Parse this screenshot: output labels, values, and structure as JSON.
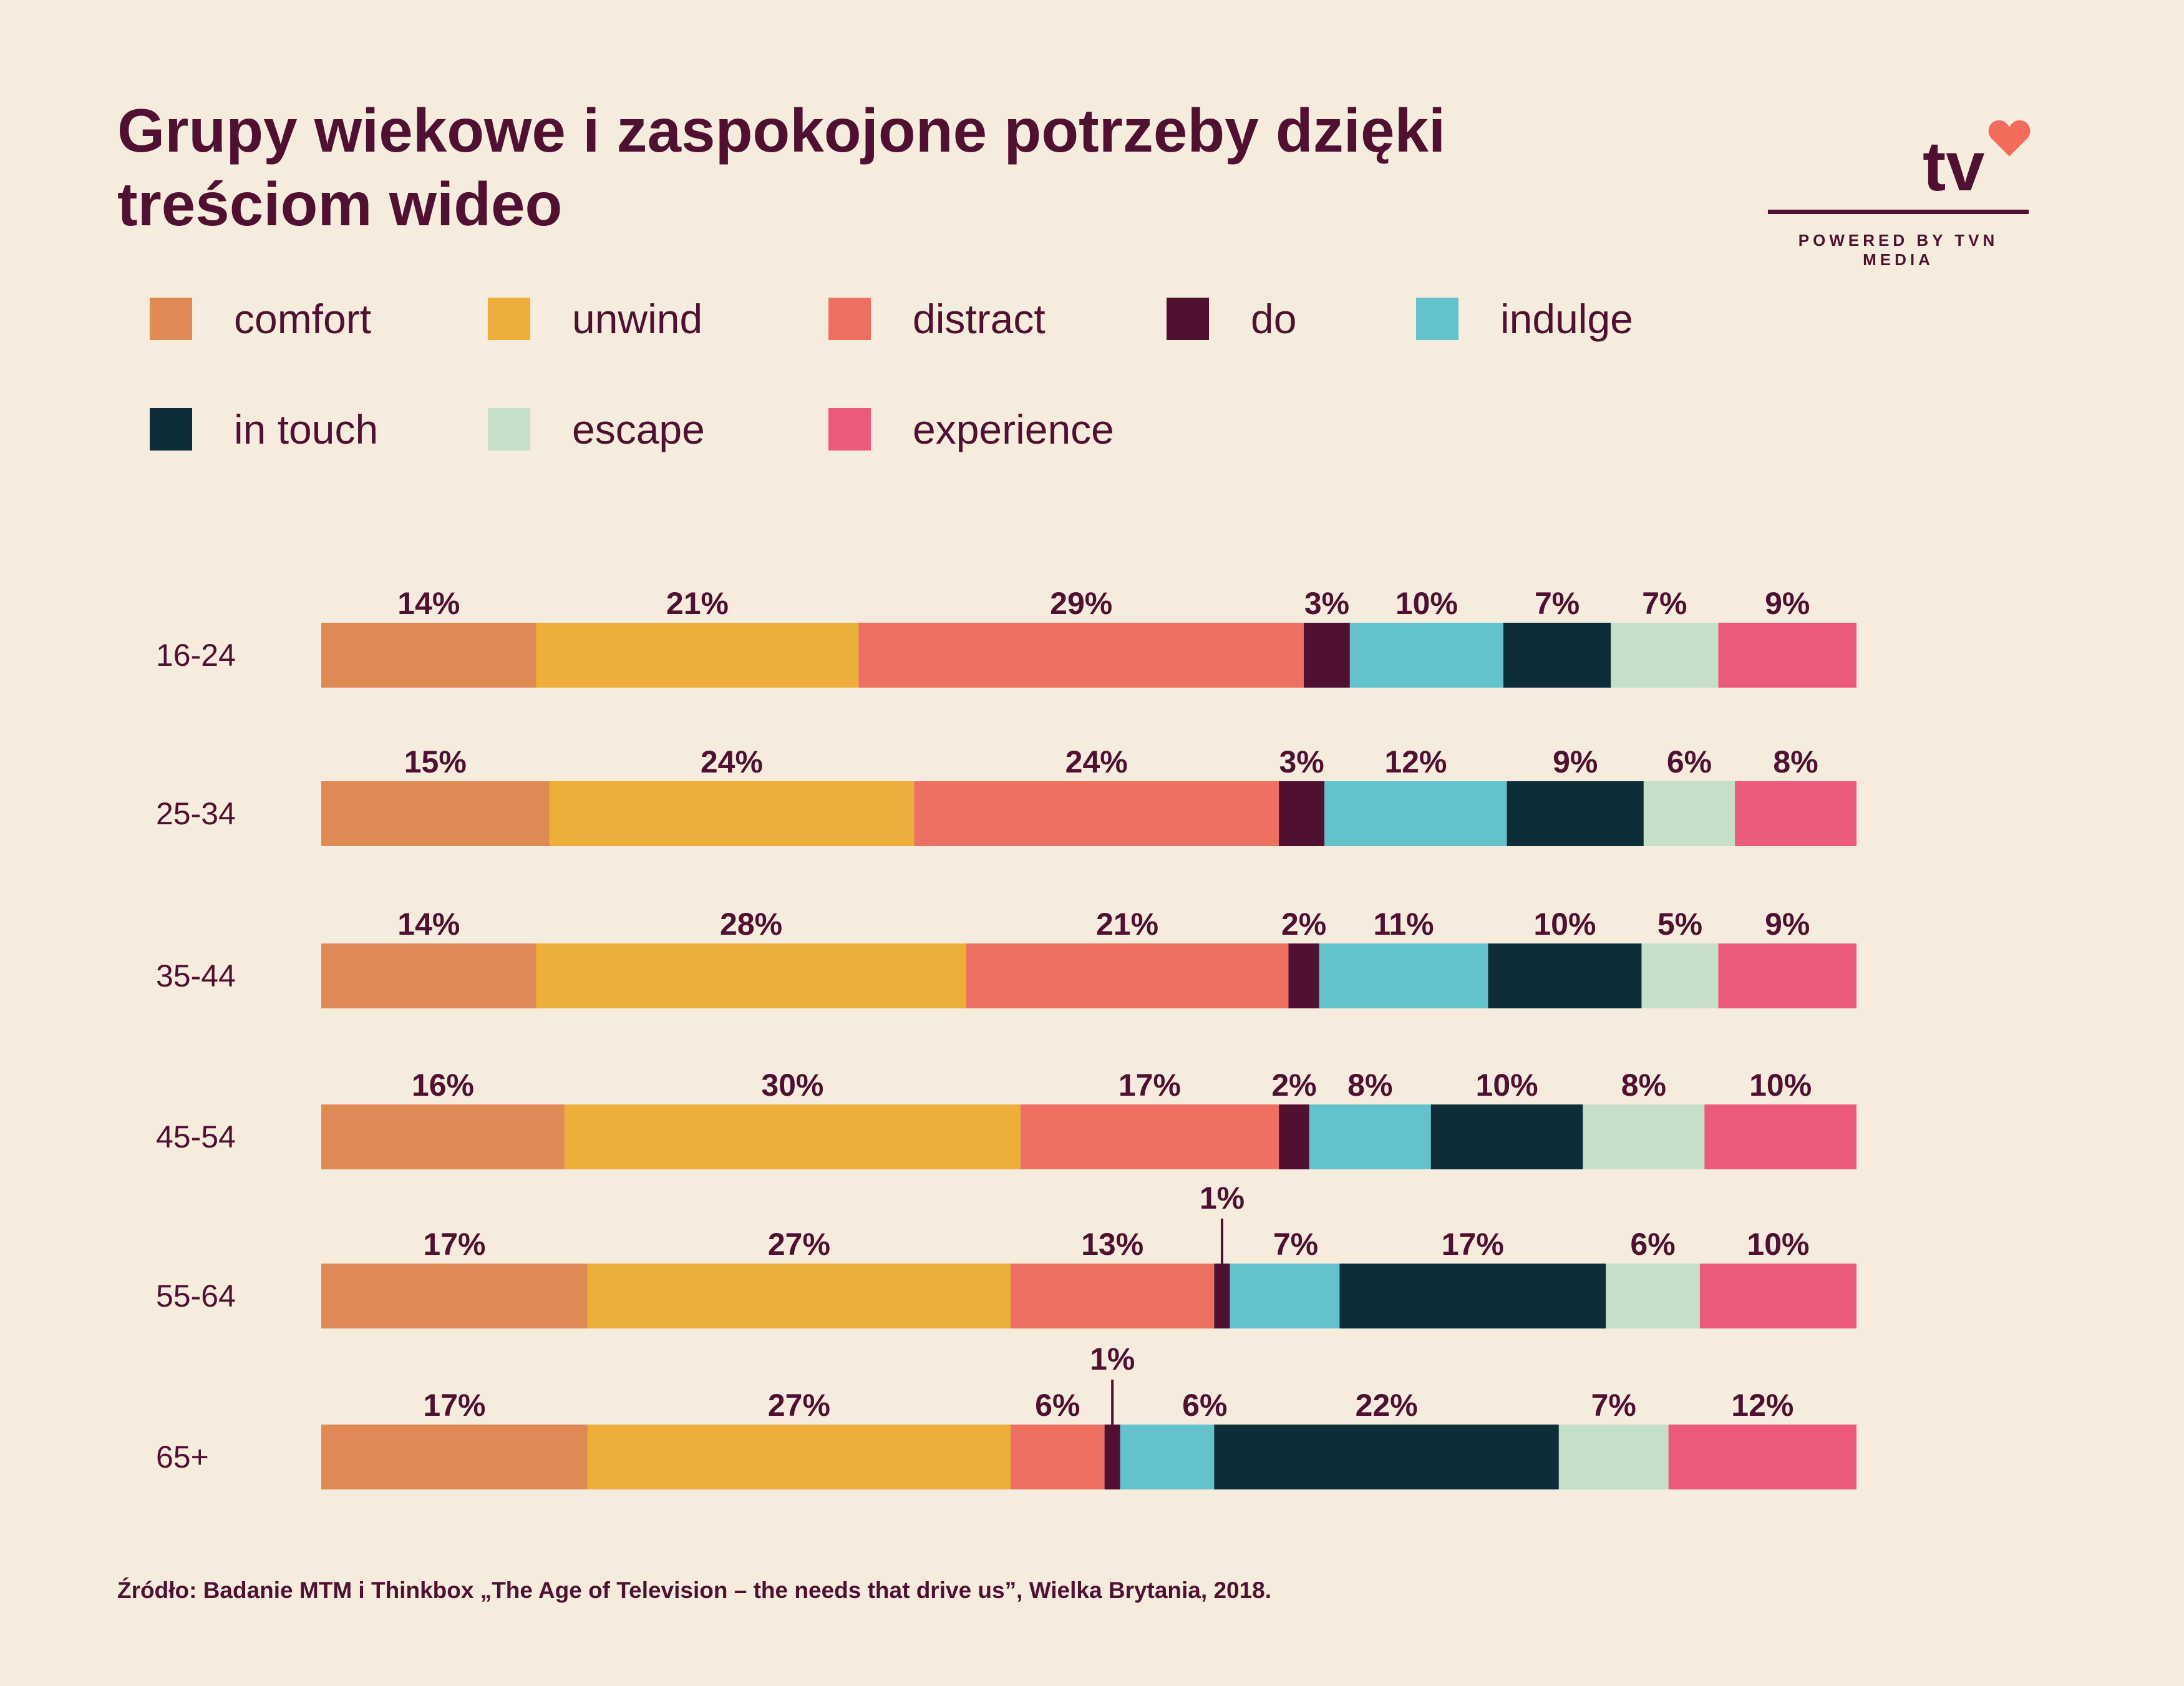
{
  "title": "Grupy wiekowe i zaspokojone potrzeby dzięki treściom wideo",
  "logo": {
    "mark": "tv",
    "heart_icon": "heart-icon",
    "tagline": "POWERED BY TVN MEDIA",
    "heart_color": "#f26b5b"
  },
  "source": "Źródło: Badanie MTM i Thinkbox „The Age of Television – the needs that drive us”, Wielka Brytania, 2018.",
  "chart_data": {
    "type": "bar",
    "orientation": "horizontal",
    "stacked": true,
    "title": "",
    "xlabel": "",
    "ylabel": "",
    "categories": [
      "16-24",
      "25-34",
      "35-44",
      "45-54",
      "55-64",
      "65+"
    ],
    "series": [
      {
        "name": "comfort",
        "color": "#df8955",
        "values": [
          14,
          15,
          14,
          16,
          17,
          17
        ],
        "labels": [
          "14%",
          "15%",
          "14%",
          "16%",
          "17%",
          "17%"
        ]
      },
      {
        "name": "unwind",
        "color": "#eeae3a",
        "values": [
          21,
          24,
          28,
          30,
          27,
          27
        ],
        "labels": [
          "21%",
          "24%",
          "28%",
          "30%",
          "27%",
          "27%"
        ]
      },
      {
        "name": "distract",
        "color": "#ee7062",
        "values": [
          29,
          24,
          21,
          17,
          13,
          6
        ],
        "labels": [
          "29%",
          "24%",
          "21%",
          "17%",
          "13%",
          "6%"
        ]
      },
      {
        "name": "do",
        "color": "#4f1032",
        "values": [
          3,
          3,
          2,
          2,
          1,
          1
        ],
        "labels": [
          "3%",
          "3%",
          "2%",
          "2%",
          "1%",
          "1%"
        ]
      },
      {
        "name": "indulge",
        "color": "#64c2cc",
        "values": [
          10,
          12,
          11,
          8,
          7,
          6
        ],
        "labels": [
          "10%",
          "12%",
          "11%",
          "8%",
          "7%",
          "6%"
        ]
      },
      {
        "name": "in touch",
        "color": "#0d2d38",
        "values": [
          7,
          9,
          10,
          10,
          17,
          22
        ],
        "labels": [
          "7%",
          "9%",
          "10%",
          "10%",
          "17%",
          "22%"
        ]
      },
      {
        "name": "escape",
        "color": "#c6dfc8",
        "values": [
          7,
          6,
          5,
          8,
          6,
          7
        ],
        "labels": [
          "7%",
          "6%",
          "5%",
          "8%",
          "6%",
          "7%"
        ]
      },
      {
        "name": "experience",
        "color": "#ec5a79",
        "values": [
          9,
          8,
          9,
          10,
          10,
          12
        ],
        "labels": [
          "9%",
          "8%",
          "9%",
          "10%",
          "10%",
          "12%"
        ]
      }
    ],
    "xlim": [
      0,
      100
    ],
    "grid": false,
    "legend": "top"
  }
}
